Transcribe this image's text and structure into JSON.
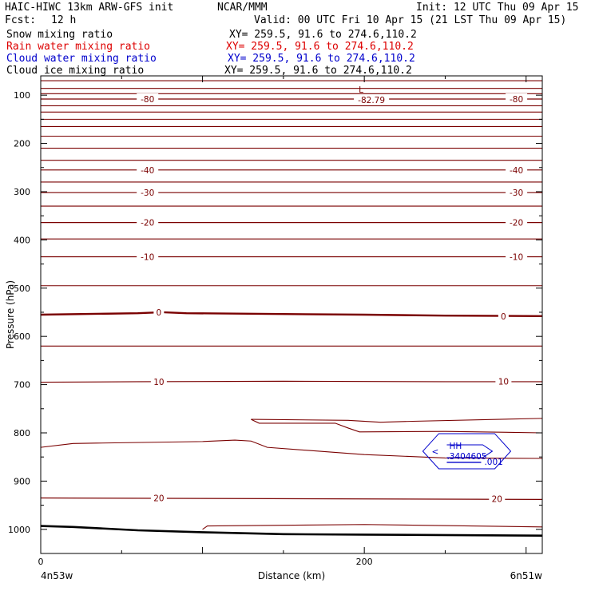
{
  "header": {
    "model": "HAIC-HIWC 13km ARW-GFS init",
    "center": "NCAR/MMM",
    "init": "Init: 12 UTC Thu 09 Apr 15",
    "fcst_label": "Fcst:",
    "fcst_value": "12 h",
    "valid": "Valid: 00 UTC Fri 10 Apr 15 (21 LST Thu 09 Apr 15)"
  },
  "fields": [
    {
      "name": "Snow mixing ratio",
      "xy": "XY= 259.5, 91.6 to 274.6,110.2",
      "color": "#000000"
    },
    {
      "name": "Rain water mixing ratio",
      "xy": "XY= 259.5, 91.6 to 274.6,110.2",
      "color": "#dd0000"
    },
    {
      "name": "Cloud water mixing ratio",
      "xy": "XY= 259.5, 91.6 to 274.6,110.2",
      "color": "#0000cc"
    },
    {
      "name": "Cloud ice mixing ratio",
      "xy": "XY= 259.5, 91.6 to 274.6,110.2",
      "color": "#000000"
    }
  ],
  "chart_data": {
    "type": "line",
    "xlabel": "Distance (km)",
    "ylabel": "Pressure (hPa)",
    "xlim": [
      0,
      310
    ],
    "ylim": [
      1050,
      60
    ],
    "x_ticks": [
      "0",
      "200"
    ],
    "y_ticks": [
      "100",
      "200",
      "300",
      "400",
      "500",
      "600",
      "700",
      "800",
      "900",
      "1000"
    ],
    "endpoint_left": "4n53w",
    "endpoint_right": "6n51w",
    "contour_color": "#7a0000",
    "isotherms": [
      {
        "label": "-80",
        "points": [
          [
            0,
            108
          ],
          [
            310,
            108
          ]
        ],
        "labels_at": [
          [
            66,
            108
          ],
          [
            294,
            108
          ]
        ]
      },
      {
        "label": "-40",
        "points": [
          [
            0,
            255
          ],
          [
            310,
            255
          ]
        ],
        "labels_at": [
          [
            66,
            255
          ],
          [
            294,
            255
          ]
        ]
      },
      {
        "label": "-30",
        "points": [
          [
            0,
            302
          ],
          [
            310,
            302
          ]
        ],
        "labels_at": [
          [
            66,
            302
          ],
          [
            294,
            302
          ]
        ]
      },
      {
        "label": "-20",
        "points": [
          [
            0,
            364
          ],
          [
            310,
            364
          ]
        ],
        "labels_at": [
          [
            66,
            364
          ],
          [
            294,
            364
          ]
        ]
      },
      {
        "label": "-10",
        "points": [
          [
            0,
            435
          ],
          [
            310,
            435
          ]
        ],
        "labels_at": [
          [
            66,
            435
          ],
          [
            294,
            435
          ]
        ]
      },
      {
        "label": "0",
        "points": [
          [
            0,
            555
          ],
          [
            60,
            552
          ],
          [
            75,
            550
          ],
          [
            90,
            552
          ],
          [
            200,
            555
          ],
          [
            250,
            557
          ],
          [
            310,
            558
          ]
        ],
        "labels_at": [
          [
            73,
            550
          ],
          [
            286,
            558
          ]
        ]
      },
      {
        "label": "10",
        "points": [
          [
            0,
            695
          ],
          [
            60,
            694
          ],
          [
            150,
            693
          ],
          [
            250,
            694
          ],
          [
            310,
            694
          ]
        ],
        "labels_at": [
          [
            73,
            694
          ],
          [
            286,
            693
          ]
        ]
      },
      {
        "label": "20",
        "points": [
          [
            0,
            935
          ],
          [
            310,
            938
          ]
        ],
        "labels_at": [
          [
            73,
            935
          ],
          [
            282,
            937
          ]
        ]
      }
    ],
    "min_label": {
      "text": "L",
      "value": "-82.79",
      "x": 198,
      "y": 88
    },
    "cloud_water": {
      "label": "HH",
      "values": ".3404605",
      "edge_label": ".001",
      "x": 250,
      "y": 838
    }
  }
}
